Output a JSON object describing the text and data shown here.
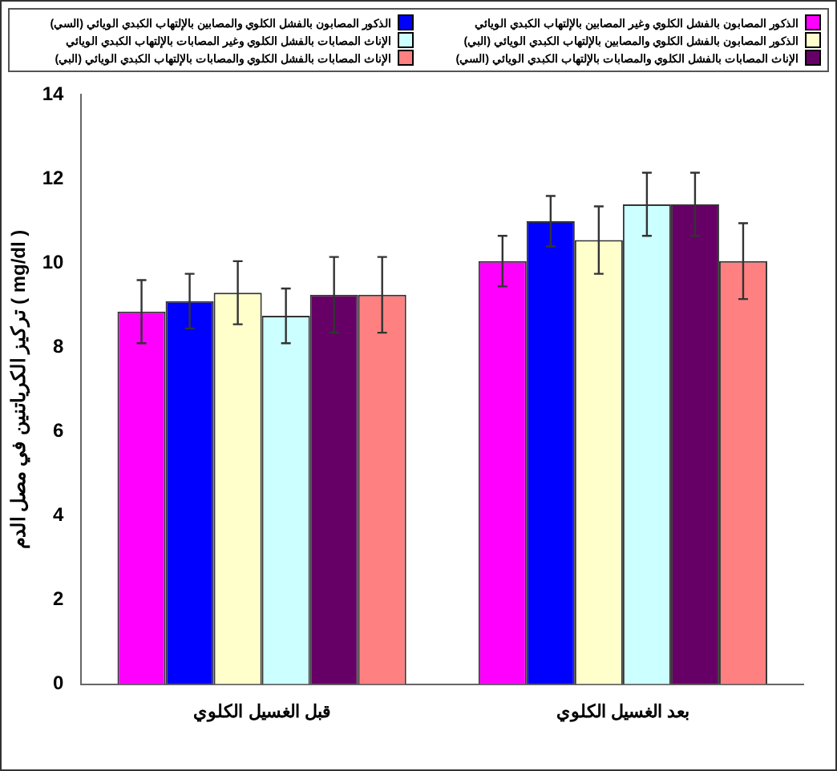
{
  "chart_data": {
    "type": "bar",
    "categories": [
      "قبل الغسيل الكلوي",
      "بعد الغسيل الكلوي"
    ],
    "ylabel": "تركيز الكرياتنين في مصل الدم ( mg/dl )",
    "ylim": [
      0,
      14
    ],
    "yticks": [
      0,
      2,
      4,
      6,
      8,
      10,
      12,
      14
    ],
    "grid": false,
    "legend": "top",
    "series": [
      {
        "name": "الذكور المصابون بالفشل الكلوي وغير المصابين بالإلتهاب الكبدي الويائي",
        "color": "#ff00ff",
        "values": [
          8.85,
          10.05
        ],
        "errors": [
          0.75,
          0.6
        ]
      },
      {
        "name": "الذكور المصابون بالفشل الكلوي والمصابين بالإلتهاب الكبدي الويائي (السي)",
        "color": "#0000ff",
        "values": [
          9.1,
          11.0
        ],
        "errors": [
          0.65,
          0.6
        ]
      },
      {
        "name": "الذكور المصابون بالفشل الكلوي والمصابين بالإلتهاب الكبدي الويائي (البي)",
        "color": "#ffffcc",
        "values": [
          9.3,
          10.55
        ],
        "errors": [
          0.75,
          0.8
        ]
      },
      {
        "name": "الإناث المصابات بالفشل الكلوي وغير المصابات بالإلتهاب الكبدي الويائي",
        "color": "#ccffff",
        "values": [
          8.75,
          11.4
        ],
        "errors": [
          0.65,
          0.75
        ]
      },
      {
        "name": "الإناث المصابات بالفشل الكلوي والمصابات بالإلتهاب الكبدي الويائي (السي)",
        "color": "#660066",
        "values": [
          9.25,
          11.4
        ],
        "errors": [
          0.9,
          0.75
        ]
      },
      {
        "name": "الإناث المصابات بالفشل الكلوي والمصابات بالإلتهاب الكبدي الويائي (البي)",
        "color": "#ff8080",
        "values": [
          9.25,
          10.05
        ],
        "errors": [
          0.9,
          0.9
        ]
      }
    ]
  }
}
